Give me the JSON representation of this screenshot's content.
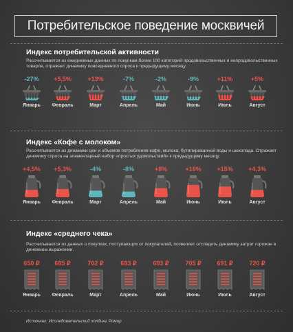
{
  "title": "Потребительское поведение москвичей",
  "colors": {
    "up": "#e8534a",
    "down": "#5fb6bd",
    "dark": "#5a5a5a"
  },
  "months": [
    "Январь",
    "Февраль",
    "Март",
    "Апрель",
    "Май",
    "Июнь",
    "Июль",
    "Август"
  ],
  "sections": [
    {
      "heading": "Индекс потребительской активности",
      "description": "Рассчитывается из ежедневных данных по покупкам более 100 категорий продовольственных и непродовольственных товаров, отражает динамику повседневного спроса к предыдущему месяцу.",
      "icon": "basket-icon",
      "items": [
        {
          "value": "-27%",
          "trend": "down",
          "fill": 0.3
        },
        {
          "value": "+5,5%",
          "trend": "up",
          "fill": 0.5
        },
        {
          "value": "+13%",
          "trend": "up",
          "fill": 0.7
        },
        {
          "value": "-7%",
          "trend": "down",
          "fill": 0.5
        },
        {
          "value": "-2%",
          "trend": "down",
          "fill": 0.5
        },
        {
          "value": "-9%",
          "trend": "down",
          "fill": 0.45
        },
        {
          "value": "+11%",
          "trend": "up",
          "fill": 0.65
        },
        {
          "value": "+5%",
          "trend": "up",
          "fill": 0.5
        }
      ]
    },
    {
      "heading": "Индекс «Кофе с молоком»",
      "description": "Рассчитывается из динамики цен и объемов потребления кофе, молока, бутилированной воды и шоколада. Отражает динамику спроса на элементарный набор «простых удовольствий» к предыдущему месяцу.",
      "icon": "coffee-pot-icon",
      "items": [
        {
          "value": "+4,5%",
          "trend": "up",
          "fill": 0.45
        },
        {
          "value": "+5,3%",
          "trend": "up",
          "fill": 0.5
        },
        {
          "value": "-4%",
          "trend": "down",
          "fill": 0.4
        },
        {
          "value": "-8%",
          "trend": "down",
          "fill": 0.35
        },
        {
          "value": "+8%",
          "trend": "up",
          "fill": 0.55
        },
        {
          "value": "+19%",
          "trend": "up",
          "fill": 0.75
        },
        {
          "value": "+15%",
          "trend": "up",
          "fill": 0.65
        },
        {
          "value": "+4,3%",
          "trend": "up",
          "fill": 0.45
        }
      ]
    },
    {
      "heading": "Индекс «среднего чека»",
      "description": "Рассчитывается из данных о покупках, поступающих от покупателей, позволяет отследить динамику затрат горожан в денежном выражении.",
      "icon": "receipt-icon",
      "items": [
        {
          "value": "650 ₽",
          "trend": "up",
          "fill": 0.5
        },
        {
          "value": "685 ₽",
          "trend": "up",
          "fill": 0.5
        },
        {
          "value": "702 ₽",
          "trend": "up",
          "fill": 0.5
        },
        {
          "value": "683 ₽",
          "trend": "up",
          "fill": 0.5
        },
        {
          "value": "693 ₽",
          "trend": "up",
          "fill": 0.5
        },
        {
          "value": "705 ₽",
          "trend": "up",
          "fill": 0.5
        },
        {
          "value": "691 ₽",
          "trend": "up",
          "fill": 0.5
        },
        {
          "value": "720 ₽",
          "trend": "up",
          "fill": 0.5
        }
      ]
    }
  ],
  "source": "Источник: Исследовательский холдинг Ромир"
}
